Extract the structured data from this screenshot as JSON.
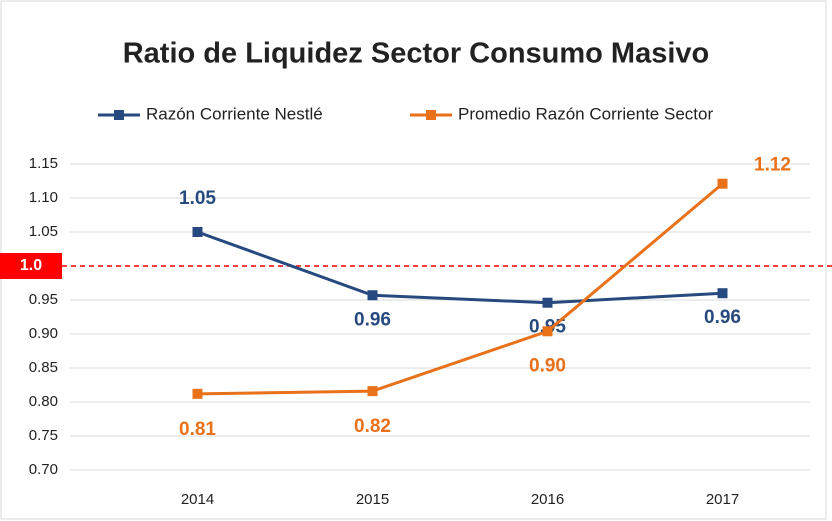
{
  "chart_data": {
    "type": "line",
    "title": "Ratio de Liquidez Sector Consumo Masivo",
    "categories": [
      "2014",
      "2015",
      "2016",
      "2017"
    ],
    "series": [
      {
        "name": "Razón Corriente Nestlé",
        "color": "#264a7f",
        "values": [
          1.05,
          0.957,
          0.946,
          0.96
        ],
        "value_labels": [
          "1.05",
          "0.96",
          "0.95",
          "0.96"
        ]
      },
      {
        "name": "Promedio Razón Corriente Sector",
        "color": "#e8711a",
        "values": [
          0.812,
          0.816,
          0.904,
          1.121
        ],
        "value_labels": [
          "0.81",
          "0.82",
          "0.90",
          "1.12"
        ]
      }
    ],
    "ylim": [
      0.7,
      1.15
    ],
    "yticks": [
      {
        "value": 0.7,
        "label": "0.70"
      },
      0.75,
      {
        "value": 0.8,
        "label": "0.80"
      },
      0.85,
      {
        "value": 0.9,
        "label": "0.90"
      },
      0.95,
      1.05,
      {
        "value": 1.1,
        "label": "1.10"
      },
      1.15
    ],
    "reference_line": {
      "value": 1,
      "label": "1.0",
      "color": "#ff0000"
    },
    "grid": true,
    "legend": "top"
  }
}
